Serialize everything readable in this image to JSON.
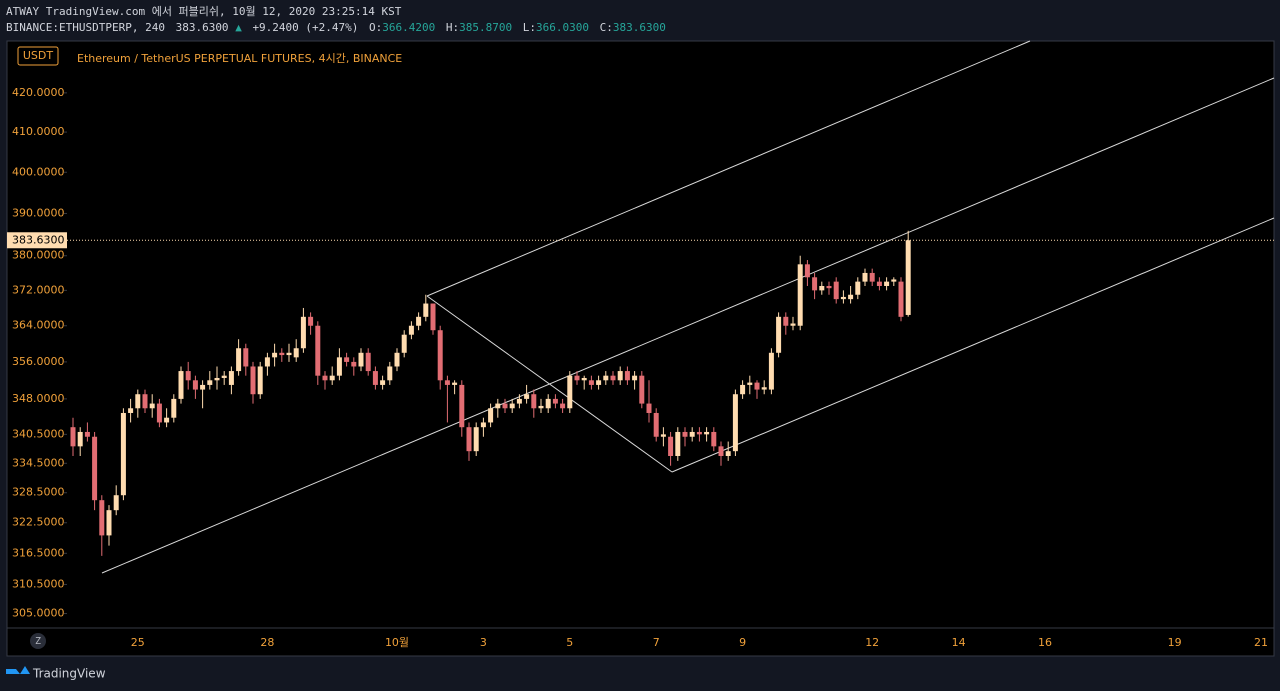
{
  "header": {
    "line1": "ATWAY TradingView.com 에서 퍼블리쉬, 10월 12, 2020 23:25:14 KST",
    "symbol": "BINANCE:ETHUSDTPERP, 240",
    "price": "383.6300",
    "arrow": "▲",
    "change": "+9.2400 (+2.47%)",
    "o_label": "O:",
    "o": "366.4200",
    "h_label": "H:",
    "h": "385.8700",
    "l_label": "L:",
    "l": "366.0300",
    "c_label": "C:",
    "c": "383.6300"
  },
  "chart_data": {
    "type": "candlestick",
    "title": "Ethereum / TetherUS PERPETUAL FUTURES, 4시간, BINANCE",
    "currency": "USDT",
    "log_scale": true,
    "up_color": "#ffdcb0",
    "down_color": "#e26d73",
    "ylim": [
      302.3,
      433.6
    ],
    "yticks": [
      {
        "value": 420,
        "label": "420.0000"
      },
      {
        "value": 410,
        "label": "410.0000"
      },
      {
        "value": 400,
        "label": "400.0000"
      },
      {
        "value": 390,
        "label": "390.0000"
      },
      {
        "value": 380,
        "label": "380.0000"
      },
      {
        "value": 372,
        "label": "372.0000"
      },
      {
        "value": 364,
        "label": "364.0000"
      },
      {
        "value": 356,
        "label": "356.0000"
      },
      {
        "value": 348,
        "label": "348.0000"
      },
      {
        "value": 340.5,
        "label": "340.5000"
      },
      {
        "value": 334.5,
        "label": "334.5000"
      },
      {
        "value": 328.5,
        "label": "328.5000"
      },
      {
        "value": 322.5,
        "label": "322.5000"
      },
      {
        "value": 316.5,
        "label": "316.5000"
      },
      {
        "value": 310.5,
        "label": "310.5000"
      },
      {
        "value": 305,
        "label": "305.0000"
      }
    ],
    "last_price": {
      "value": 383.63,
      "label": "383.6300"
    },
    "categories": [
      null,
      null,
      null,
      null,
      null,
      null,
      null,
      null,
      null,
      "25",
      null,
      null,
      null,
      null,
      null,
      null,
      null,
      null,
      null,
      null,
      null,
      null,
      null,
      null,
      null,
      null,
      null,
      "28",
      null,
      null,
      null,
      null,
      null,
      null,
      null,
      null,
      null,
      null,
      null,
      null,
      null,
      null,
      null,
      null,
      null,
      "10월",
      null,
      null,
      null,
      null,
      null,
      null,
      null,
      null,
      null,
      null,
      null,
      "3",
      null,
      null,
      null,
      null,
      null,
      null,
      null,
      null,
      null,
      null,
      null,
      "5",
      null,
      null,
      null,
      null,
      null,
      null,
      null,
      null,
      null,
      null,
      null,
      "7",
      null,
      null,
      null,
      null,
      null,
      null,
      null,
      null,
      null,
      null,
      null,
      "9",
      null,
      null,
      null,
      null,
      null,
      null,
      null,
      null,
      null,
      null,
      null,
      null,
      null,
      null,
      null,
      null,
      null,
      "12",
      null,
      null,
      null,
      null,
      null,
      null,
      null,
      null,
      null,
      null,
      null,
      "14",
      null,
      null,
      null,
      null,
      null,
      null,
      null,
      null,
      null,
      null,
      null,
      "16",
      null,
      null,
      null,
      null,
      null,
      null,
      null,
      null,
      null,
      null,
      null,
      null,
      null,
      null,
      null,
      null,
      null,
      "19",
      null,
      null,
      null,
      null,
      null,
      null,
      null,
      null,
      null,
      null,
      null,
      "21"
    ],
    "series": [
      {
        "name": "ETHUSDTPERP",
        "open": [
          342,
          338,
          341,
          340,
          327,
          320,
          325,
          328,
          345,
          346,
          349,
          346,
          347,
          343,
          344,
          348,
          354,
          352,
          350,
          351,
          352,
          352.5,
          351,
          354,
          359,
          355,
          349,
          355,
          357,
          358,
          357.5,
          357,
          359,
          366,
          364,
          353,
          352,
          353,
          357,
          356,
          355,
          358,
          354,
          351,
          352,
          355,
          358,
          362,
          364,
          366,
          369,
          363,
          352,
          351,
          351,
          342,
          337,
          342,
          343,
          346,
          347,
          346,
          347,
          348,
          349,
          346,
          346,
          348,
          347,
          346,
          353,
          352,
          352,
          351,
          352,
          353,
          352,
          354,
          352,
          353,
          347,
          345,
          340,
          340,
          336,
          341,
          340,
          341,
          340.5,
          341,
          338,
          336,
          337,
          349,
          351,
          351.5,
          350,
          350,
          358,
          366,
          364,
          364,
          378,
          375,
          372,
          373,
          374,
          370,
          370,
          371,
          374,
          376,
          374,
          373,
          374,
          374,
          366.42,
          null,
          null,
          null,
          null,
          null,
          null,
          null,
          null,
          null,
          null,
          null,
          null,
          null,
          null,
          null,
          null,
          null,
          null,
          null,
          null,
          null,
          null,
          null,
          null,
          null,
          null,
          null,
          null,
          null,
          null,
          null,
          null,
          null,
          null,
          null,
          null,
          null,
          null,
          null,
          null,
          null,
          null,
          null,
          null,
          null
        ],
        "high": [
          344,
          342,
          343,
          341,
          328,
          326,
          330,
          346,
          348,
          350,
          350,
          349,
          348,
          346,
          349,
          355,
          356,
          353,
          352,
          354,
          355,
          354,
          355,
          361,
          360,
          356,
          356,
          358,
          360,
          359,
          360,
          361,
          368,
          367,
          365,
          354,
          355,
          359,
          358,
          357,
          359,
          359,
          355,
          353,
          356,
          359,
          363,
          365,
          367,
          371,
          369,
          364,
          353,
          352,
          352,
          343,
          343,
          344,
          347,
          348,
          348,
          348,
          349,
          351,
          350,
          348,
          349,
          349,
          348,
          354,
          354,
          353,
          353,
          353,
          354,
          354,
          355,
          355,
          354,
          354,
          352,
          346,
          342,
          341,
          342,
          342,
          342,
          342,
          342,
          342,
          339,
          339,
          350,
          352,
          353,
          352,
          352,
          359,
          367,
          367,
          366,
          380,
          379,
          376,
          374,
          374,
          375,
          372,
          373,
          375,
          377,
          377,
          375,
          375,
          375,
          375,
          385.87,
          null,
          null,
          null,
          null,
          null,
          null,
          null,
          null,
          null,
          null,
          null,
          null,
          null,
          null,
          null,
          null,
          null,
          null,
          null,
          null,
          null,
          null,
          null,
          null,
          null,
          null,
          null,
          null,
          null,
          null,
          null,
          null,
          null,
          null,
          null,
          null,
          null,
          null,
          null,
          null,
          null,
          null,
          null,
          null,
          null
        ],
        "low": [
          336,
          336,
          339,
          325,
          316,
          318,
          324,
          327,
          343,
          344,
          345,
          344,
          342,
          342,
          343,
          347,
          350,
          348,
          346,
          350,
          350,
          351,
          349,
          353,
          353,
          347,
          348,
          353,
          355,
          356,
          356,
          356,
          358,
          362,
          351,
          350,
          351,
          352,
          355,
          353,
          354,
          353,
          350,
          350,
          351,
          354,
          357,
          361,
          363,
          365,
          362,
          350,
          343,
          349,
          340,
          335,
          336,
          340,
          342,
          344,
          345,
          345,
          346,
          347,
          344,
          345,
          345,
          346,
          345,
          345,
          351,
          350,
          350,
          350,
          351,
          351,
          351,
          351,
          350,
          346,
          343,
          339,
          338,
          334,
          335,
          338,
          339,
          339,
          339,
          337,
          334,
          335,
          336,
          348,
          349,
          348,
          349,
          349,
          357,
          362,
          363,
          363,
          373,
          370,
          371,
          371,
          369,
          369,
          369,
          370,
          373,
          373,
          372,
          372,
          373,
          365,
          366.03,
          null,
          null,
          null,
          null,
          null,
          null,
          null,
          null,
          null,
          null,
          null,
          null,
          null,
          null,
          null,
          null,
          null,
          null,
          null,
          null,
          null,
          null,
          null,
          null,
          null,
          null,
          null,
          null,
          null,
          null,
          null,
          null,
          null,
          null,
          null,
          null,
          null,
          null,
          null,
          null,
          null,
          null,
          null,
          null,
          null
        ],
        "close": [
          338,
          341,
          340,
          327,
          320,
          325,
          328,
          345,
          346,
          349,
          346,
          347,
          343,
          344,
          348,
          354,
          352,
          350,
          351,
          352,
          352.5,
          353,
          354,
          359,
          355,
          349,
          355,
          357,
          358,
          357.5,
          358,
          359,
          366,
          364,
          353,
          352,
          353,
          357,
          356,
          355,
          358,
          354,
          351,
          352,
          355,
          358,
          362,
          364,
          366,
          369,
          363,
          352,
          351,
          351.5,
          342,
          337,
          342,
          343,
          346,
          347,
          346,
          347,
          348,
          349,
          346,
          346.5,
          348,
          347,
          346,
          353,
          352,
          352.5,
          351,
          352,
          353,
          352,
          354,
          352,
          353,
          347,
          345,
          340,
          340.5,
          336,
          341,
          340,
          341,
          340.5,
          341,
          338,
          336,
          337,
          349,
          351,
          351.5,
          350,
          350.5,
          358,
          366,
          364,
          364.5,
          378,
          375,
          372,
          373,
          372.5,
          370,
          370.5,
          371,
          374,
          376,
          374,
          373,
          374,
          374.5,
          366,
          383.63,
          null,
          null,
          null,
          null,
          null,
          null,
          null,
          null,
          null,
          null,
          null,
          null,
          null,
          null,
          null,
          null,
          null,
          null,
          null,
          null,
          null,
          null,
          null,
          null,
          null,
          null,
          null,
          null,
          null,
          null,
          null,
          null,
          null,
          null,
          null,
          null,
          null,
          null,
          null,
          null,
          null,
          null,
          null,
          null,
          null
        ]
      }
    ]
  },
  "footer": {
    "z": "Z",
    "brand": "TradingView"
  }
}
